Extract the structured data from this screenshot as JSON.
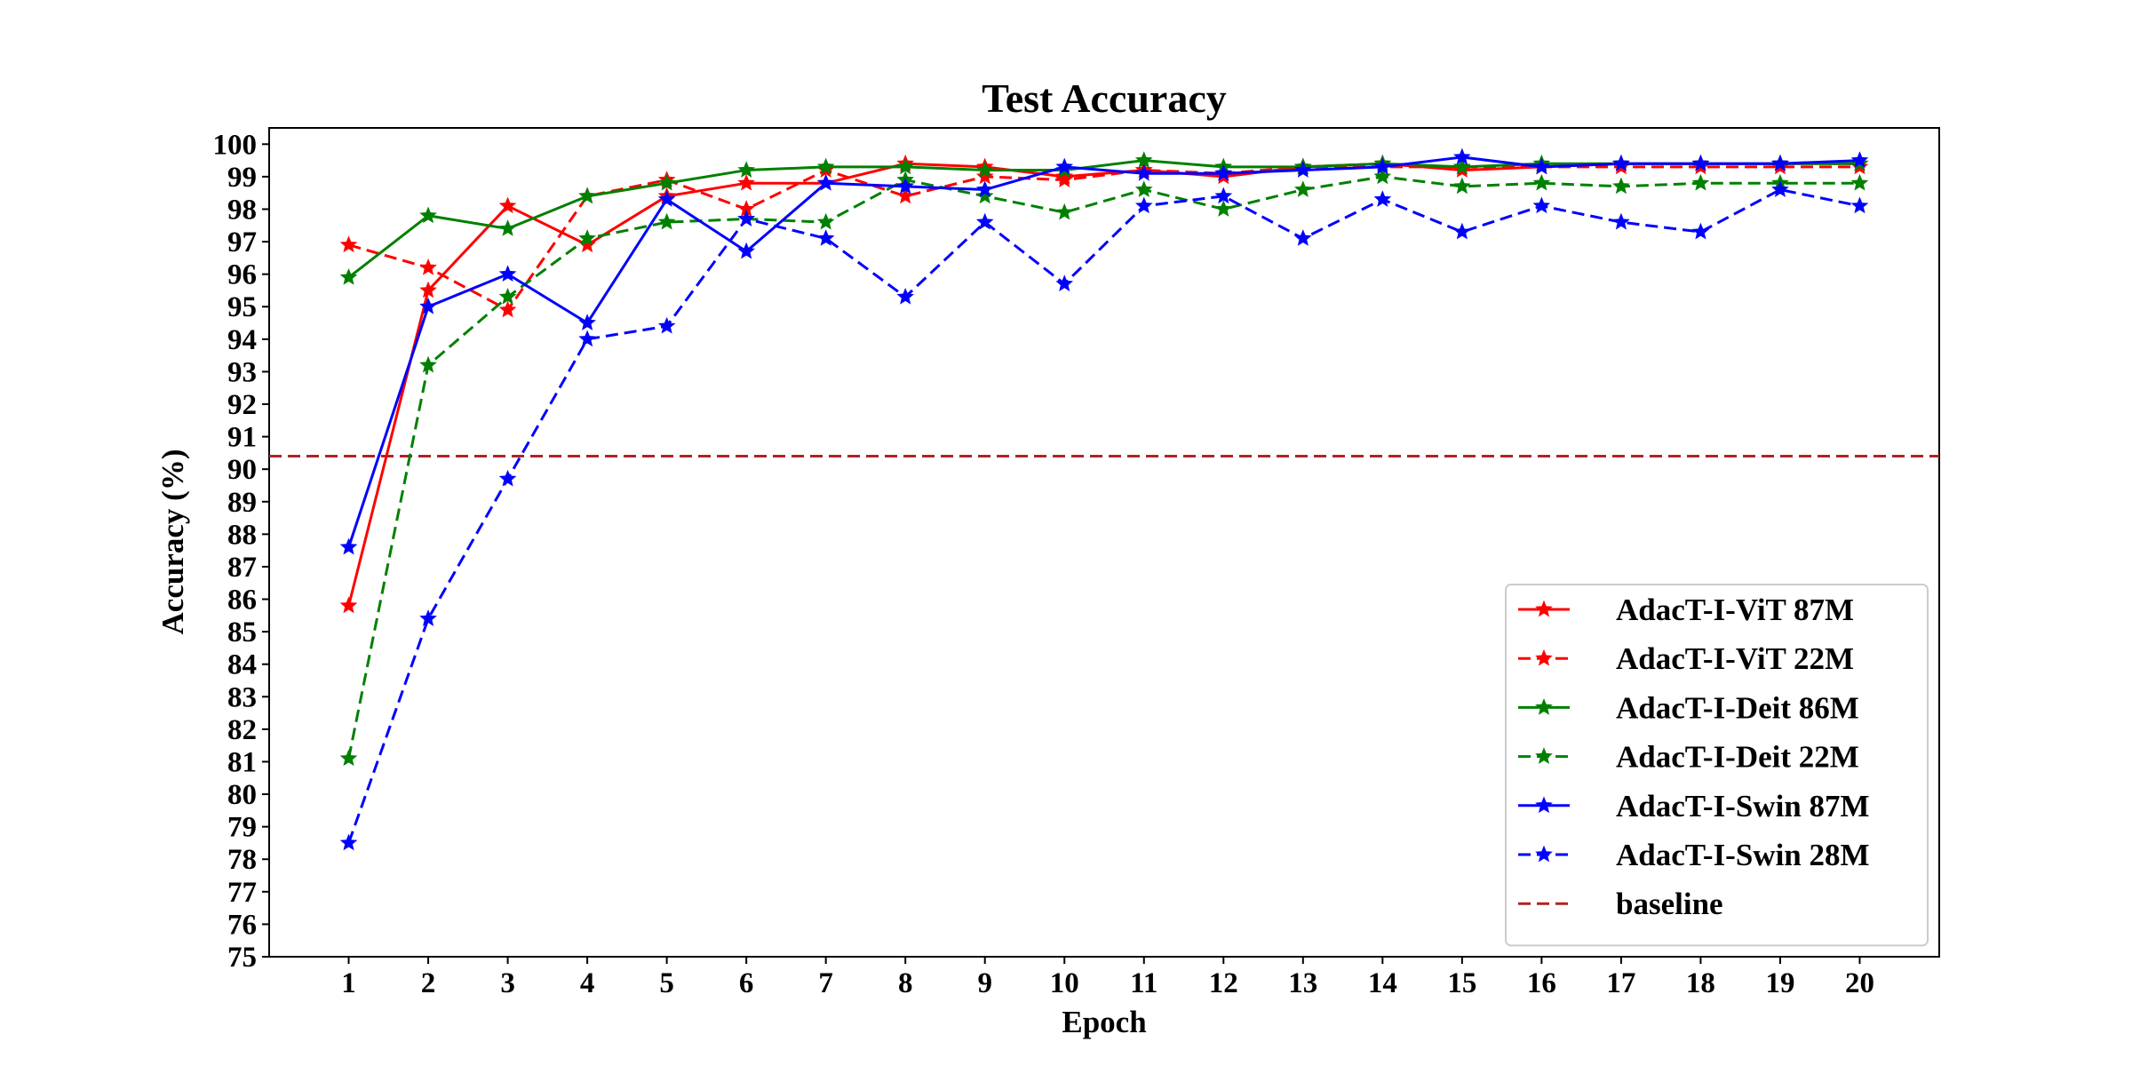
{
  "chart_data": {
    "type": "line",
    "title": "Test Accuracy",
    "xlabel": "Epoch",
    "ylabel": "Accuracy (%)",
    "x": [
      1,
      2,
      3,
      4,
      5,
      6,
      7,
      8,
      9,
      10,
      11,
      12,
      13,
      14,
      15,
      16,
      17,
      18,
      19,
      20
    ],
    "xlim": [
      0,
      21
    ],
    "ylim": [
      75,
      100.5
    ],
    "yticks": [
      75,
      76,
      77,
      78,
      79,
      80,
      81,
      82,
      83,
      84,
      85,
      86,
      87,
      88,
      89,
      90,
      91,
      92,
      93,
      94,
      95,
      96,
      97,
      98,
      99,
      100
    ],
    "grid": false,
    "legend_position": "lower-right",
    "series": [
      {
        "name": "AdacT-I-ViT 87M",
        "color": "#ff0000",
        "dash": "solid",
        "values": [
          85.8,
          95.5,
          98.1,
          96.9,
          98.4,
          98.8,
          98.8,
          99.4,
          99.3,
          99.0,
          99.2,
          99.0,
          99.3,
          99.4,
          99.2,
          99.3,
          99.4,
          99.4,
          99.4,
          99.4
        ]
      },
      {
        "name": "AdacT-I-ViT 22M",
        "color": "#ff0000",
        "dash": "dashed",
        "values": [
          96.9,
          96.2,
          94.9,
          98.4,
          98.9,
          98.0,
          99.2,
          98.4,
          99.0,
          98.9,
          99.2,
          99.1,
          99.3,
          99.3,
          99.3,
          99.3,
          99.3,
          99.3,
          99.3,
          99.3
        ]
      },
      {
        "name": "AdacT-I-Deit 86M",
        "color": "#008000",
        "dash": "solid",
        "values": [
          95.9,
          97.8,
          97.4,
          98.4,
          98.8,
          99.2,
          99.3,
          99.3,
          99.2,
          99.2,
          99.5,
          99.3,
          99.3,
          99.4,
          99.3,
          99.4,
          99.4,
          99.4,
          99.4,
          99.4
        ]
      },
      {
        "name": "AdacT-I-Deit 22M",
        "color": "#008000",
        "dash": "dashed",
        "values": [
          81.1,
          93.2,
          95.3,
          97.1,
          97.6,
          97.7,
          97.6,
          98.9,
          98.4,
          97.9,
          98.6,
          98.0,
          98.6,
          99.0,
          98.7,
          98.8,
          98.7,
          98.8,
          98.8,
          98.8
        ]
      },
      {
        "name": "AdacT-I-Swin 87M",
        "color": "#0000ff",
        "dash": "solid",
        "values": [
          87.6,
          95.0,
          96.0,
          94.5,
          98.3,
          96.7,
          98.8,
          98.7,
          98.6,
          99.3,
          99.1,
          99.1,
          99.2,
          99.3,
          99.6,
          99.3,
          99.4,
          99.4,
          99.4,
          99.5
        ]
      },
      {
        "name": "AdacT-I-Swin 28M",
        "color": "#0000ff",
        "dash": "dashed",
        "values": [
          78.5,
          85.4,
          89.7,
          94.0,
          94.4,
          97.7,
          97.1,
          95.3,
          97.6,
          95.7,
          98.1,
          98.4,
          97.1,
          98.3,
          97.3,
          98.1,
          97.6,
          97.3,
          98.6,
          98.1
        ]
      }
    ],
    "baseline": {
      "name": "baseline",
      "value": 90.4,
      "color": "#b22222",
      "dash": "dashed"
    }
  }
}
